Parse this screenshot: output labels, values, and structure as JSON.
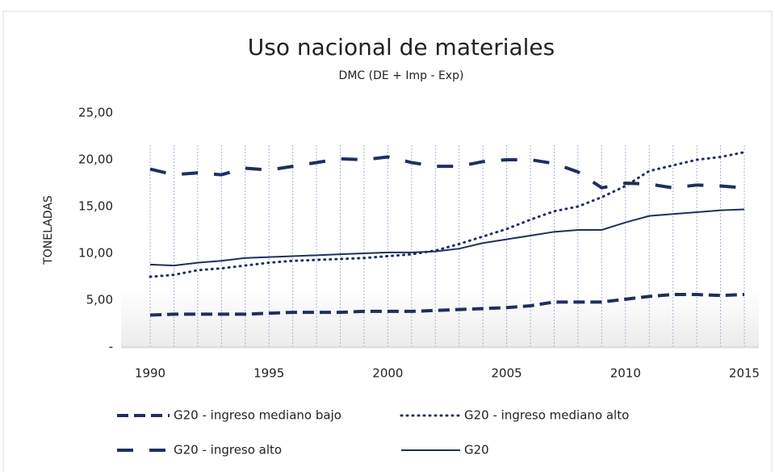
{
  "chart_data": {
    "type": "line",
    "title": "Uso nacional de materiales",
    "subtitle": "DMC (DE + Imp - Exp)",
    "y_label": "TONELADAS",
    "x": [
      1990,
      1991,
      1992,
      1993,
      1994,
      1995,
      1996,
      1997,
      1998,
      1999,
      2000,
      2001,
      2002,
      2003,
      2004,
      2005,
      2006,
      2007,
      2008,
      2009,
      2010,
      2011,
      2012,
      2013,
      2014,
      2015
    ],
    "xlim": [
      1990,
      2015
    ],
    "xticks": [
      1990,
      1995,
      2000,
      2005,
      2010,
      2015
    ],
    "ylim": [
      0,
      25
    ],
    "yticks": [
      {
        "value": 0,
        "label": "-"
      },
      {
        "value": 5,
        "label": "5,00"
      },
      {
        "value": 10,
        "label": "10,00"
      },
      {
        "value": 15,
        "label": "15,00"
      },
      {
        "value": 20,
        "label": "20,00"
      },
      {
        "value": 25,
        "label": "25,00"
      }
    ],
    "vertical_grid": true,
    "series": [
      {
        "name": "G20 - ingreso mediano bajo",
        "color": "#1f2f5e",
        "line_style": "dash",
        "values": [
          3.4,
          3.5,
          3.5,
          3.5,
          3.5,
          3.6,
          3.7,
          3.7,
          3.7,
          3.8,
          3.8,
          3.8,
          3.9,
          4.0,
          4.1,
          4.2,
          4.4,
          4.8,
          4.8,
          4.8,
          5.1,
          5.4,
          5.6,
          5.6,
          5.5,
          5.6
        ]
      },
      {
        "name": "G20 - ingreso mediano alto",
        "color": "#1f2f5e",
        "line_style": "dot",
        "values": [
          7.5,
          7.7,
          8.2,
          8.4,
          8.7,
          9.0,
          9.2,
          9.3,
          9.4,
          9.5,
          9.7,
          9.9,
          10.3,
          11.0,
          11.8,
          12.6,
          13.6,
          14.5,
          15.0,
          16.0,
          17.2,
          18.8,
          19.4,
          20.0,
          20.3,
          20.8
        ]
      },
      {
        "name": "G20 - ingreso alto",
        "color": "#1f2f5e",
        "line_style": "longdash",
        "values": [
          19.0,
          18.4,
          18.6,
          18.4,
          19.1,
          18.9,
          19.3,
          19.7,
          20.1,
          20.0,
          20.3,
          19.7,
          19.3,
          19.3,
          19.8,
          20.0,
          20.0,
          19.6,
          18.7,
          17.0,
          17.5,
          17.4,
          17.0,
          17.3,
          17.2,
          17.0
        ]
      },
      {
        "name": "G20",
        "color": "#1f2f5e",
        "line_style": "solid",
        "values": [
          8.8,
          8.7,
          9.0,
          9.2,
          9.5,
          9.6,
          9.7,
          9.8,
          9.9,
          10.0,
          10.1,
          10.1,
          10.2,
          10.5,
          11.1,
          11.5,
          11.9,
          12.3,
          12.5,
          12.5,
          13.3,
          14.0,
          14.2,
          14.4,
          14.6,
          14.7
        ]
      }
    ]
  }
}
